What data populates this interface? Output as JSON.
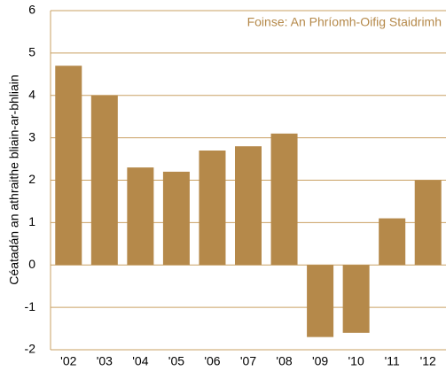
{
  "chart_data": {
    "type": "bar",
    "y_label": "Céatadán an athraithe bliain-ar-bhliain",
    "annotation": "Foinse: An Phríomh-Oifig Staidrimh",
    "categories": [
      "'02",
      "'03",
      "'04",
      "'05",
      "'06",
      "'07",
      "'08",
      "'09",
      "'10",
      "'11",
      "'12"
    ],
    "values": [
      4.7,
      4.0,
      2.3,
      2.2,
      2.7,
      2.8,
      3.1,
      -1.7,
      -1.6,
      1.1,
      2.0
    ],
    "color": "#b5894a",
    "ylim": [
      -2,
      6
    ],
    "yticks": [
      -2,
      -1,
      0,
      1,
      2,
      3,
      4,
      5,
      6
    ],
    "grid": true
  }
}
